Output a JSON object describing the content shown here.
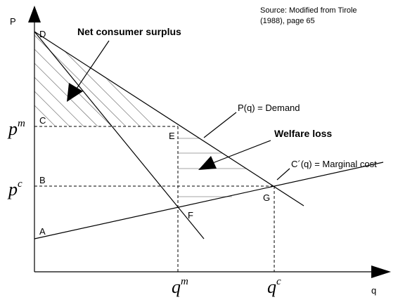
{
  "source": [
    "Source: Modified from Tirole",
    "(1988), page 65"
  ],
  "axes": {
    "y": "P",
    "x": "q"
  },
  "annotations": {
    "surplus": "Net consumer surplus",
    "loss": "Welfare loss",
    "demand": "P(q) = Demand",
    "cost": "C´(q)  = Marginal cost"
  },
  "points": {
    "D": "D",
    "C": "C",
    "B": "B",
    "A": "A",
    "E": "E",
    "F": "F",
    "G": "G"
  },
  "prices": [
    {
      "symbol": "p",
      "superscript": "m"
    },
    {
      "symbol": "p",
      "superscript": "c"
    }
  ],
  "quantities": [
    {
      "symbol": "q",
      "superscript": "m"
    },
    {
      "symbol": "q",
      "superscript": "c"
    }
  ]
}
